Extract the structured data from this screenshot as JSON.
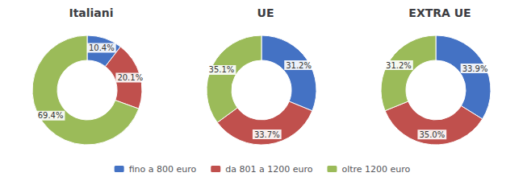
{
  "chart_data": [
    {
      "type": "pie",
      "title": "Italiani",
      "categories": [
        "fino a 800 euro",
        "da 801 a 1200 euro",
        "oltre 1200 euro"
      ],
      "values": [
        10.4,
        20.1,
        69.4
      ],
      "value_labels": [
        "10.4%",
        "20.1%",
        "69.4%"
      ],
      "colors": [
        "#4472C4",
        "#C0504D",
        "#9BBB59"
      ],
      "data_labels": true,
      "legend": "bottom"
    },
    {
      "type": "pie",
      "title": "UE",
      "categories": [
        "fino a 800 euro",
        "da 801 a 1200 euro",
        "oltre 1200 euro"
      ],
      "values": [
        31.2,
        33.7,
        35.1
      ],
      "value_labels": [
        "31.2%",
        "33.7%",
        "35.1%"
      ],
      "colors": [
        "#4472C4",
        "#C0504D",
        "#9BBB59"
      ],
      "data_labels": true,
      "legend": "bottom"
    },
    {
      "type": "pie",
      "title": "EXTRA UE",
      "categories": [
        "fino a 800 euro",
        "da 801 a 1200 euro",
        "oltre 1200 euro"
      ],
      "values": [
        33.9,
        35.0,
        31.2
      ],
      "value_labels": [
        "33.9%",
        "35.0%",
        "31.2%"
      ],
      "colors": [
        "#4472C4",
        "#C0504D",
        "#9BBB59"
      ],
      "data_labels": true,
      "legend": "bottom"
    }
  ]
}
